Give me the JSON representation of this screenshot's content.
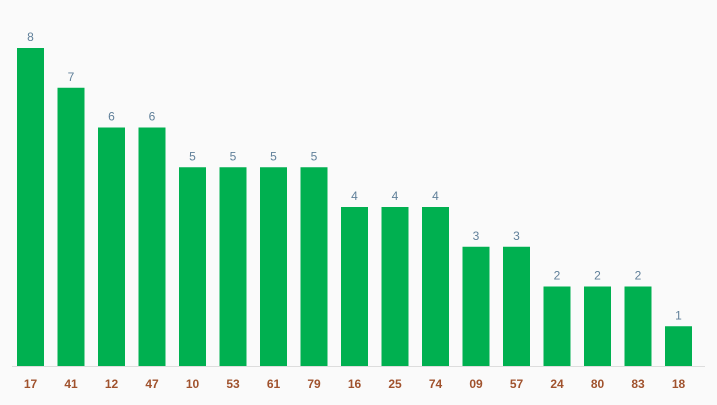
{
  "chart_data": {
    "type": "bar",
    "title": "",
    "xlabel": "",
    "ylabel": "",
    "categories": [
      "17",
      "41",
      "12",
      "47",
      "10",
      "53",
      "61",
      "79",
      "16",
      "25",
      "74",
      "09",
      "57",
      "24",
      "80",
      "83",
      "18"
    ],
    "values": [
      8,
      7,
      6,
      6,
      5,
      5,
      5,
      5,
      4,
      4,
      4,
      3,
      3,
      2,
      2,
      2,
      1
    ],
    "ylim": [
      0,
      8
    ],
    "grid": false,
    "data_labels": true,
    "colors": {
      "bar": "#00b050",
      "value_label": "#5f7f99",
      "category_label": "#a0522d",
      "axis": "#dddddd",
      "background": "#fafafa"
    }
  }
}
